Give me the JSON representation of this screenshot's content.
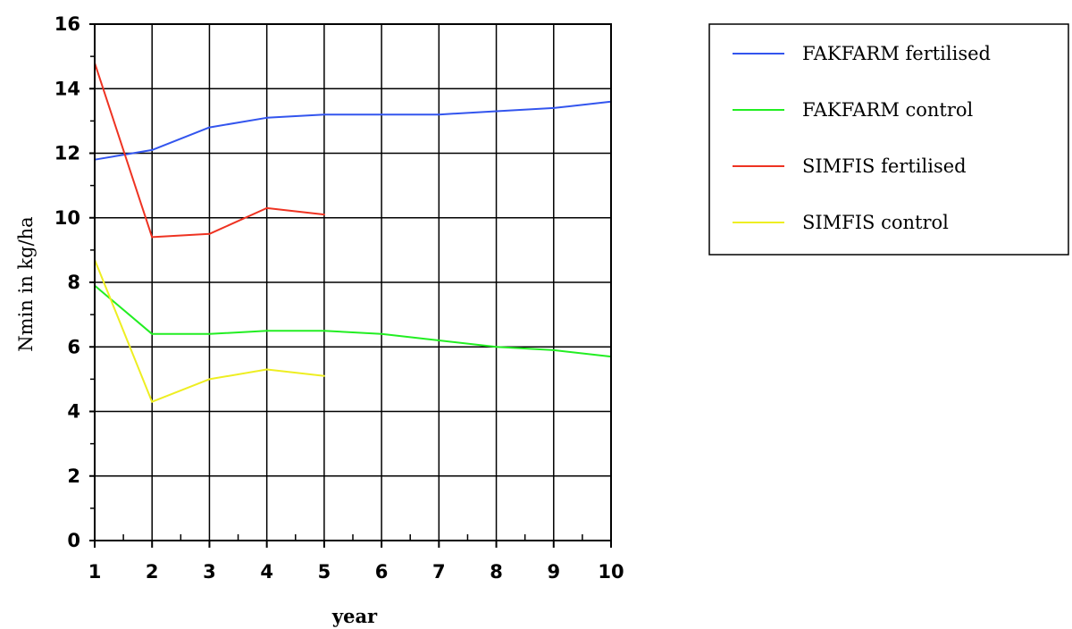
{
  "chart_data": {
    "type": "line",
    "xlabel": "year",
    "ylabel": "Nmin in kg/ha",
    "xlim": [
      1,
      10
    ],
    "ylim": [
      0,
      16
    ],
    "x_ticks": [
      "1",
      "2",
      "3",
      "4",
      "5",
      "6",
      "7",
      "8",
      "9",
      "10"
    ],
    "y_ticks": [
      "0",
      "2",
      "4",
      "6",
      "8",
      "10",
      "12",
      "14",
      "16"
    ],
    "grid": true,
    "legend_position": "top-right",
    "series": [
      {
        "name": "FAKFARM fertilised",
        "color": "#3355ee",
        "x": [
          1,
          2,
          3,
          4,
          5,
          6,
          7,
          8,
          9,
          10
        ],
        "values": [
          11.8,
          12.1,
          12.8,
          13.1,
          13.2,
          13.2,
          13.2,
          13.3,
          13.4,
          13.6
        ]
      },
      {
        "name": "FAKFARM control",
        "color": "#22ee22",
        "x": [
          1,
          2,
          3,
          4,
          5,
          6,
          7,
          8,
          9,
          10
        ],
        "values": [
          7.9,
          6.4,
          6.4,
          6.5,
          6.5,
          6.4,
          6.2,
          6.0,
          5.9,
          5.7
        ]
      },
      {
        "name": "SIMFIS fertilised",
        "color": "#ee3322",
        "x": [
          1,
          2,
          3,
          4,
          5
        ],
        "values": [
          14.8,
          9.4,
          9.5,
          10.3,
          10.1
        ]
      },
      {
        "name": "SIMFIS control",
        "color": "#eeee22",
        "x": [
          1,
          2,
          3,
          4,
          5
        ],
        "values": [
          8.7,
          4.3,
          5.0,
          5.3,
          5.1
        ]
      }
    ]
  }
}
